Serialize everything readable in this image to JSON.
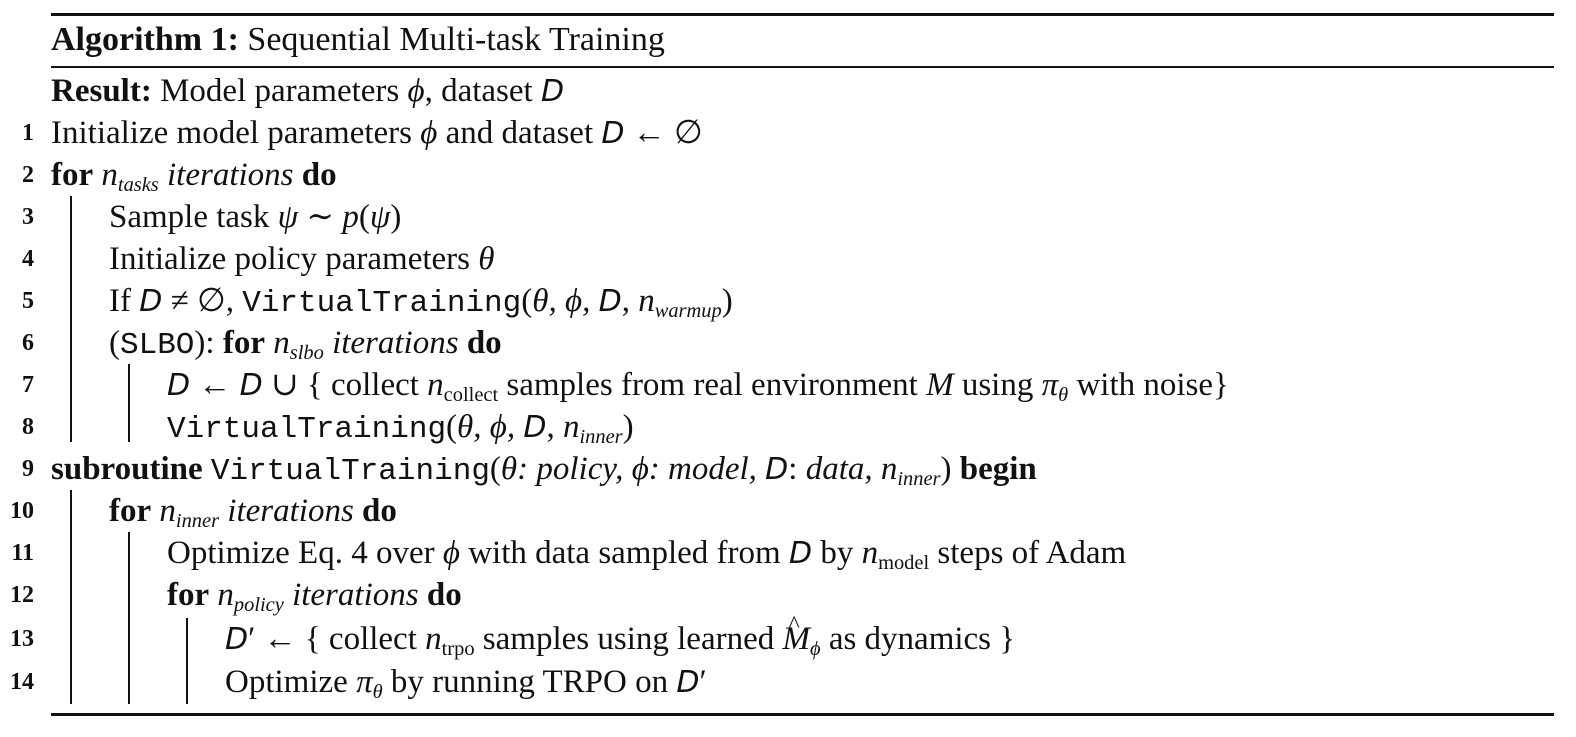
{
  "algorithm": {
    "label": "Algorithm 1:",
    "title": "Sequential Multi-task Training"
  },
  "result": {
    "label": "Result:",
    "text_a": "Model parameters",
    "phi": "ϕ",
    "text_b": ", dataset",
    "D": "D"
  },
  "lines": [
    {
      "n": "1"
    },
    {
      "n": "2"
    },
    {
      "n": "3"
    },
    {
      "n": "4"
    },
    {
      "n": "5"
    },
    {
      "n": "6"
    },
    {
      "n": "7"
    },
    {
      "n": "8"
    },
    {
      "n": "9"
    },
    {
      "n": "10"
    },
    {
      "n": "11"
    },
    {
      "n": "12"
    },
    {
      "n": "13"
    },
    {
      "n": "14"
    }
  ],
  "t": {
    "l1_a": "Initialize model parameters",
    "l1_b": "and dataset",
    "kw_for": "for",
    "kw_do": "do",
    "kw_subroutine": "subroutine",
    "kw_begin": "begin",
    "iterations": "iterations",
    "tasks": "tasks",
    "l3_a": "Sample task",
    "l4_a": "Initialize policy parameters",
    "l5_a": "If",
    "virtual_training": "VirtualTraining",
    "warmup": "warmup",
    "l6_a": "(",
    "slbo_mono": "SLBO",
    "l6_b": "):",
    "slbo": "slbo",
    "l7_a": "collect",
    "collect_sub": "collect",
    "l7_b": "samples from real environment",
    "l7_c": "using",
    "l7_d": "with noise",
    "inner": "inner",
    "l9_a": "policy,",
    "l9_b": "model,",
    "l9_c": "data,",
    "l11_a": "Optimize Eq. 4 over",
    "l11_b": "with data sampled from",
    "l11_c": "by",
    "model_sub": "model",
    "l11_d": "steps of Adam",
    "policy_sub": "policy",
    "l13_a": "collect",
    "trpo_sub": "trpo",
    "l13_b": "samples using learned",
    "l13_c": "as dynamics",
    "l14_a": "Optimize",
    "l14_b": "by running TRPO on"
  }
}
